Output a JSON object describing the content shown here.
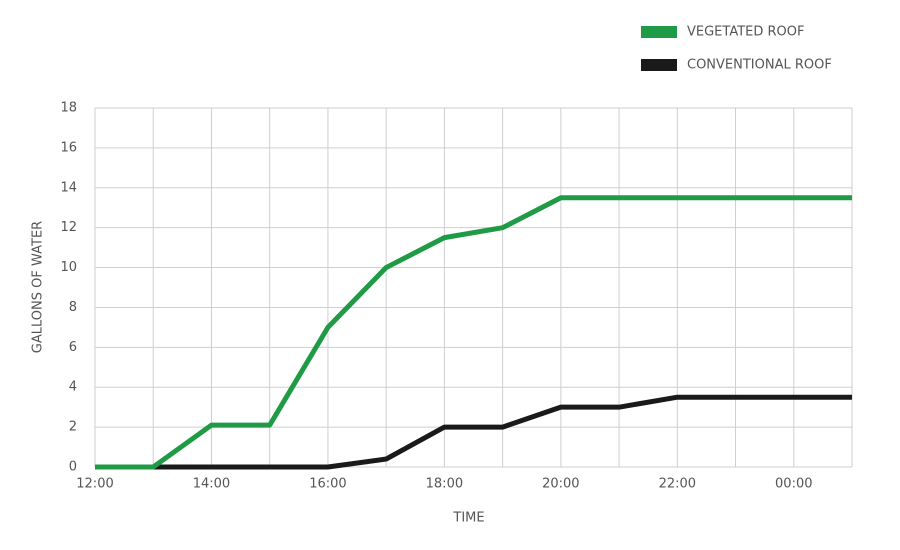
{
  "chart_data": {
    "type": "line",
    "x_label": "TIME",
    "y_label": "GALLONS OF WATER",
    "categories": [
      "12:00",
      null,
      "14:00",
      null,
      "16:00",
      null,
      "18:00",
      null,
      "20:00",
      null,
      "22:00",
      null,
      "00:00",
      null
    ],
    "series": [
      {
        "name": "VEGETATED ROOF",
        "color": "#1f9a45",
        "values": [
          0,
          0,
          2.1,
          2.1,
          7,
          10,
          11.5,
          12,
          13.5,
          13.5,
          13.5,
          13.5,
          13.5,
          13.5
        ]
      },
      {
        "name": "CONVENTIONAL ROOF",
        "color": "#1a1a1a",
        "values": [
          0,
          0,
          0,
          0,
          0,
          0.4,
          2,
          2,
          3,
          3,
          3.5,
          3.5,
          3.5,
          3.5
        ]
      }
    ],
    "ylim": [
      0,
      18
    ],
    "yticks": [
      0,
      2,
      4,
      6,
      8,
      10,
      12,
      14,
      16,
      18
    ],
    "grid": true,
    "legend": "top-right"
  }
}
